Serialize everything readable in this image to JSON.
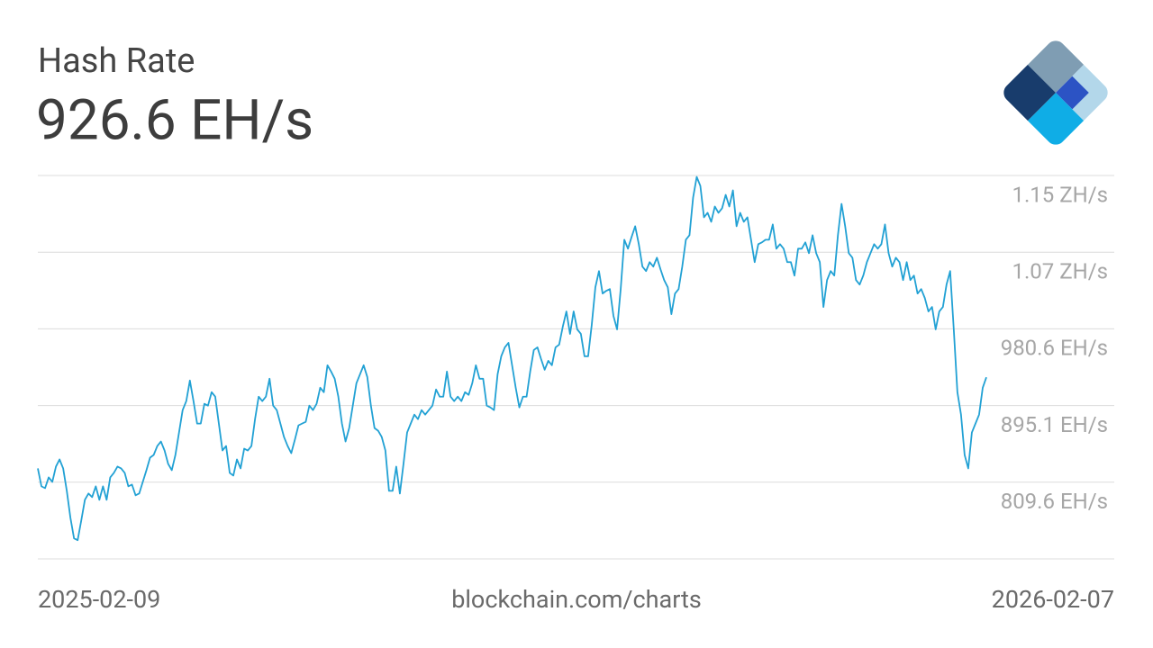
{
  "chart_data": {
    "type": "line",
    "title": "Hash Rate",
    "subtitle": "926.6 EH/s",
    "source": "blockchain.com/charts",
    "xticks": [
      "2025-02-09",
      "2026-02-07"
    ],
    "ylim": [
      724.1,
      1151.6
    ],
    "yticks": [
      {
        "value": 809.6,
        "label": "809.6 EH/s"
      },
      {
        "value": 895.1,
        "label": "895.1 EH/s"
      },
      {
        "value": 980.6,
        "label": "980.6 EH/s"
      },
      {
        "value": 1066.1,
        "label": "1.07 ZH/s"
      },
      {
        "value": 1151.6,
        "label": "1.15 ZH/s"
      }
    ],
    "grid": true,
    "color": "#22a1d4",
    "values": [
      825,
      805,
      803,
      815,
      810,
      827,
      835,
      825,
      800,
      770,
      747,
      745,
      767,
      790,
      797,
      793,
      805,
      790,
      805,
      790,
      815,
      820,
      827,
      825,
      820,
      805,
      807,
      795,
      797,
      810,
      823,
      837,
      840,
      850,
      855,
      845,
      830,
      823,
      840,
      865,
      890,
      900,
      923,
      900,
      875,
      875,
      897,
      895,
      910,
      905,
      875,
      845,
      850,
      820,
      817,
      835,
      825,
      847,
      845,
      850,
      880,
      905,
      900,
      905,
      925,
      895,
      890,
      875,
      860,
      850,
      842,
      857,
      873,
      875,
      877,
      895,
      890,
      897,
      915,
      910,
      940,
      933,
      925,
      905,
      875,
      855,
      870,
      895,
      920,
      930,
      940,
      927,
      895,
      870,
      867,
      860,
      845,
      800,
      800,
      827,
      797,
      830,
      865,
      875,
      885,
      880,
      890,
      885,
      890,
      895,
      913,
      905,
      905,
      933,
      905,
      900,
      905,
      900,
      910,
      907,
      920,
      940,
      925,
      925,
      895,
      893,
      890,
      930,
      950,
      960,
      965,
      940,
      915,
      893,
      905,
      905,
      933,
      957,
      960,
      947,
      935,
      945,
      940,
      960,
      963,
      983,
      1000,
      975,
      1000,
      980,
      975,
      950,
      950,
      985,
      1027,
      1045,
      1020,
      1023,
      1025,
      995,
      980,
      1025,
      1080,
      1070,
      1083,
      1095,
      1075,
      1050,
      1045,
      1055,
      1050,
      1060,
      1047,
      1035,
      1027,
      997,
      1020,
      1025,
      1050,
      1080,
      1085,
      1127,
      1150,
      1140,
      1105,
      1110,
      1100,
      1117,
      1110,
      1115,
      1130,
      1117,
      1135,
      1095,
      1110,
      1100,
      1105,
      1080,
      1055,
      1075,
      1077,
      1080,
      1080,
      1097,
      1070,
      1075,
      1070,
      1055,
      1055,
      1040,
      1070,
      1070,
      1077,
      1065,
      1085,
      1065,
      1055,
      1005,
      1035,
      1045,
      1040,
      1085,
      1120,
      1095,
      1065,
      1060,
      1035,
      1030,
      1040,
      1055,
      1065,
      1075,
      1070,
      1075,
      1097,
      1065,
      1050,
      1060,
      1055,
      1035,
      1055,
      1035,
      1040,
      1020,
      1025,
      1015,
      1000,
      1005,
      980,
      1000,
      1005,
      1030,
      1045,
      980,
      910,
      885,
      840,
      825,
      865,
      875,
      885,
      915,
      926.6
    ]
  }
}
